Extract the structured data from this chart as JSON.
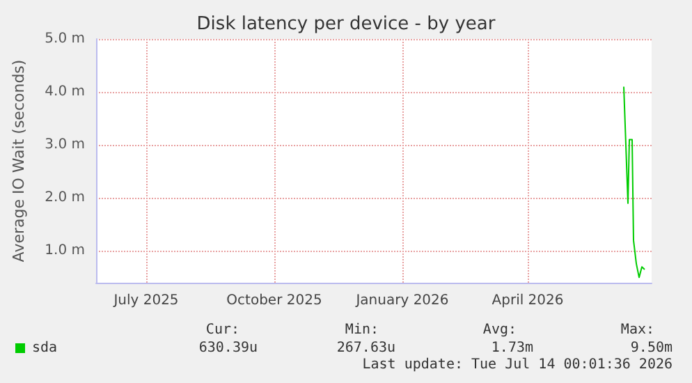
{
  "chart_data": {
    "type": "line",
    "title": "Disk latency per device - by year",
    "ylabel": "Average IO Wait (seconds)",
    "x": [
      "2026-06-24",
      "2026-06-27",
      "2026-06-28",
      "2026-06-30",
      "2026-07-01",
      "2026-07-03",
      "2026-07-05",
      "2026-07-07",
      "2026-07-09"
    ],
    "series": [
      {
        "name": "sda",
        "color": "#00cc00",
        "values": [
          4.1,
          1.9,
          3.1,
          3.1,
          1.2,
          0.76,
          0.5,
          0.7,
          0.65
        ]
      }
    ],
    "xlim": [
      "2025-06-10",
      "2026-07-14"
    ],
    "xticks": [
      {
        "value": "2025-07-16",
        "label": "July 2025"
      },
      {
        "value": "2025-10-16",
        "label": "October 2025"
      },
      {
        "value": "2026-01-16",
        "label": "January 2026"
      },
      {
        "value": "2026-04-16",
        "label": "April 2026"
      }
    ],
    "ylim": [
      0.4,
      5
    ],
    "yticks": [
      {
        "value": 1,
        "label": "1.0 m"
      },
      {
        "value": 2,
        "label": "2.0 m"
      },
      {
        "value": 3,
        "label": "3.0 m"
      },
      {
        "value": 4,
        "label": "4.0 m"
      },
      {
        "value": 5,
        "label": "5.0 m"
      }
    ],
    "grid": true,
    "legend": "bottom left",
    "marker": "none",
    "line_style": "solid",
    "annotations": [
      "Cur:",
      "Min:",
      "Avg:",
      "Max:",
      "630.39u",
      "267.63u",
      "1.73m",
      "9.50m",
      "Last update: Tue Jul 14 00:01:36 2026"
    ]
  }
}
